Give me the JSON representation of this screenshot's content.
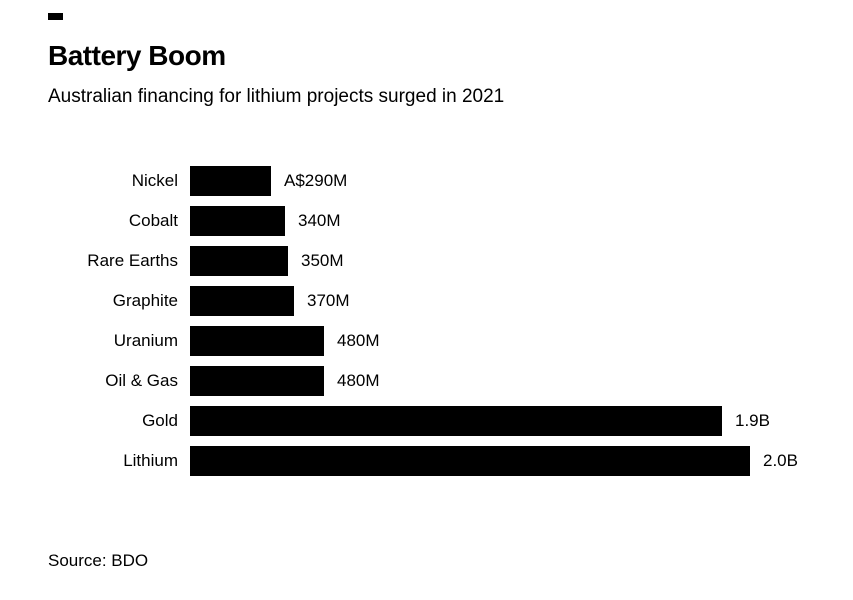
{
  "header": {
    "title": "Battery Boom",
    "subtitle": "Australian financing for lithium projects surged in 2021"
  },
  "footer": {
    "source": "Source: BDO"
  },
  "colors": {
    "bar": "#000000",
    "text": "#000000",
    "background": "#ffffff"
  },
  "chart_data": {
    "type": "bar",
    "orientation": "horizontal",
    "title": "Battery Boom",
    "subtitle": "Australian financing for lithium projects surged in 2021",
    "source": "Source: BDO",
    "categories": [
      "Nickel",
      "Cobalt",
      "Rare Earths",
      "Graphite",
      "Uranium",
      "Oil & Gas",
      "Gold",
      "Lithium"
    ],
    "values": [
      290,
      340,
      350,
      370,
      480,
      480,
      1900,
      2000
    ],
    "value_labels": [
      "A$290M",
      "340M",
      "350M",
      "370M",
      "480M",
      "480M",
      "1.9B",
      "2.0B"
    ],
    "unit": "A$ millions",
    "xlim": [
      0,
      2000
    ],
    "grid": false,
    "legend": false,
    "bar_color": "#000000"
  }
}
